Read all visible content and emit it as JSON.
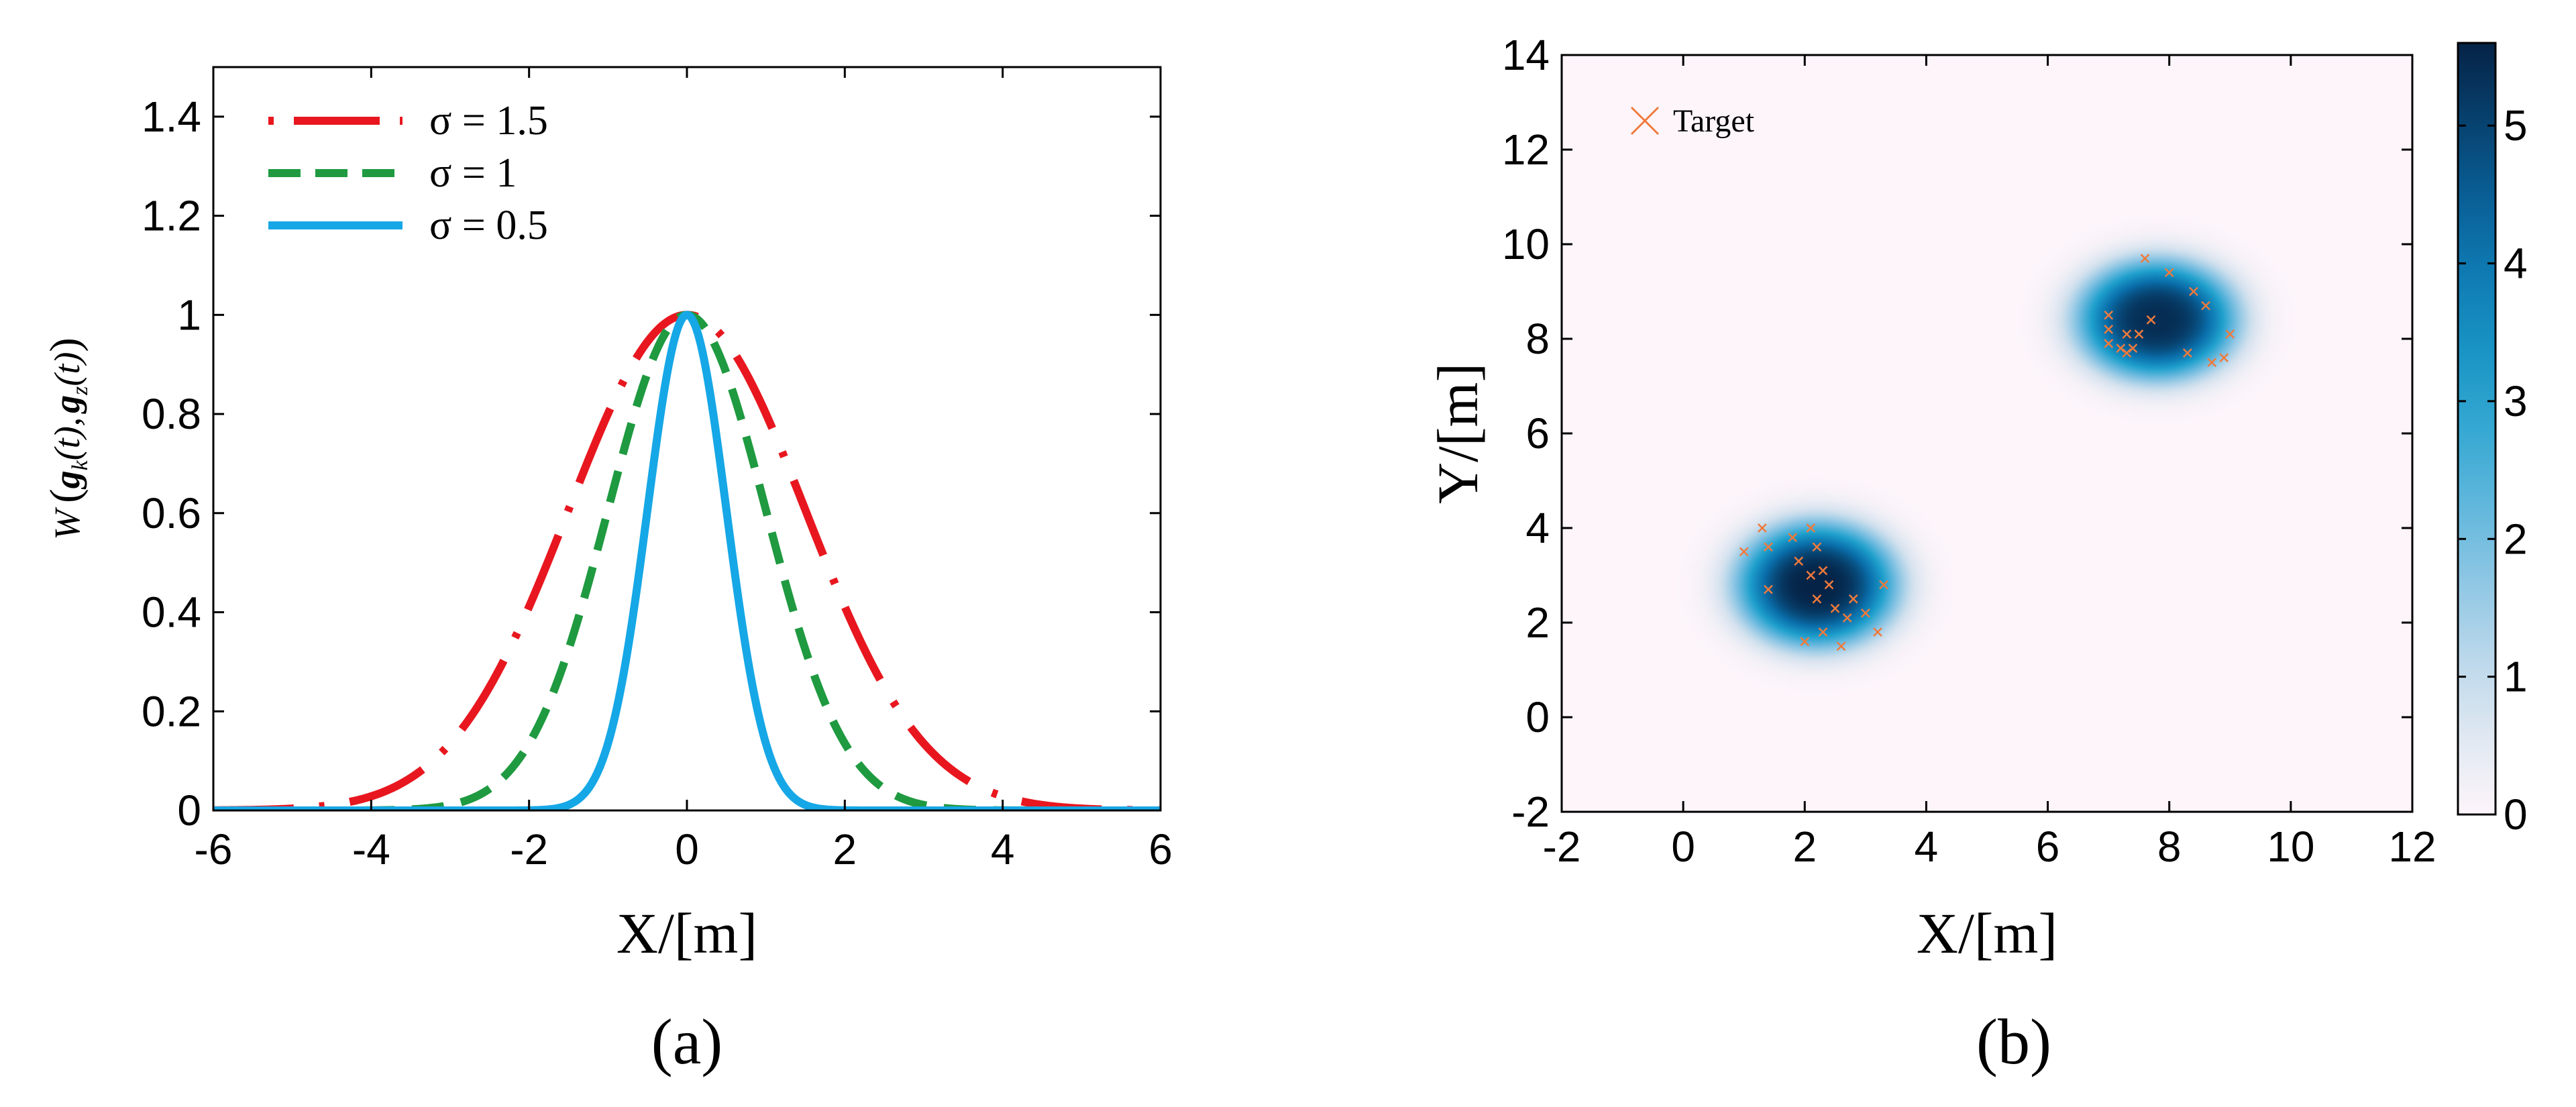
{
  "chart_data": [
    {
      "id": "a",
      "type": "line",
      "caption": "(a)",
      "xlabel": "X/[m]",
      "ylabel": "W(g_k(t), g_z(t))",
      "ylabel_display": "W ( gk(t), gz(t) )",
      "xlim": [
        -6,
        6
      ],
      "ylim": [
        0,
        1.5
      ],
      "xticks": [
        "-6",
        "-4",
        "-2",
        "0",
        "2",
        "4",
        "6"
      ],
      "yticks": [
        "0",
        "0.2",
        "0.4",
        "0.6",
        "0.8",
        "1",
        "1.2",
        "1.4"
      ],
      "function": "exp(-x^2 / (2*sigma^2))",
      "series": [
        {
          "name": "σ = 1.5",
          "sigma": 1.5,
          "color": "#e8171f",
          "style": "dash-dot"
        },
        {
          "name": "σ = 1",
          "sigma": 1.0,
          "color": "#1f9a40",
          "style": "dashed"
        },
        {
          "name": "σ = 0.5",
          "sigma": 0.5,
          "color": "#16a7e6",
          "style": "solid"
        }
      ],
      "legend_position": "top-left"
    },
    {
      "id": "b",
      "type": "heatmap",
      "caption": "(b)",
      "xlabel": "X/[m]",
      "ylabel": "Y/[m]",
      "xlim": [
        -2,
        12
      ],
      "ylim": [
        -2,
        14
      ],
      "xticks": [
        "-2",
        "0",
        "2",
        "4",
        "6",
        "8",
        "10",
        "12"
      ],
      "yticks": [
        "-2",
        "0",
        "2",
        "4",
        "6",
        "8",
        "10",
        "12",
        "14"
      ],
      "colorbar": {
        "min": 0,
        "max": 5.6,
        "ticks": [
          "0",
          "1",
          "2",
          "3",
          "4",
          "5"
        ]
      },
      "legend": {
        "label": "Target",
        "marker": "x",
        "color": "#f07a3c"
      },
      "clusters": [
        {
          "cx": 2.2,
          "cy": 2.8,
          "sx": 1.25,
          "sy": 1.25,
          "peak": 5.6
        },
        {
          "cx": 7.8,
          "cy": 8.4,
          "sx": 1.25,
          "sy": 1.2,
          "peak": 5.4
        }
      ],
      "targets": [
        [
          1.0,
          3.5
        ],
        [
          1.3,
          4.0
        ],
        [
          1.4,
          3.6
        ],
        [
          1.4,
          2.7
        ],
        [
          1.8,
          3.8
        ],
        [
          1.9,
          3.3
        ],
        [
          2.1,
          4.0
        ],
        [
          2.2,
          3.6
        ],
        [
          2.3,
          3.1
        ],
        [
          2.2,
          2.5
        ],
        [
          2.5,
          2.3
        ],
        [
          2.0,
          1.6
        ],
        [
          2.3,
          1.8
        ],
        [
          2.6,
          1.5
        ],
        [
          2.7,
          2.1
        ],
        [
          2.8,
          2.5
        ],
        [
          3.0,
          2.2
        ],
        [
          3.2,
          1.8
        ],
        [
          3.3,
          2.8
        ],
        [
          2.1,
          3.0
        ],
        [
          2.4,
          2.8
        ],
        [
          7.0,
          8.5
        ],
        [
          7.0,
          8.2
        ],
        [
          7.0,
          7.9
        ],
        [
          7.2,
          7.8
        ],
        [
          7.3,
          7.7
        ],
        [
          7.4,
          7.8
        ],
        [
          7.3,
          8.1
        ],
        [
          7.6,
          9.7
        ],
        [
          7.7,
          8.4
        ],
        [
          8.0,
          9.4
        ],
        [
          8.3,
          7.7
        ],
        [
          8.4,
          9.0
        ],
        [
          8.6,
          8.7
        ],
        [
          8.7,
          7.5
        ],
        [
          9.0,
          8.1
        ],
        [
          8.9,
          7.6
        ],
        [
          7.5,
          8.1
        ]
      ]
    }
  ]
}
